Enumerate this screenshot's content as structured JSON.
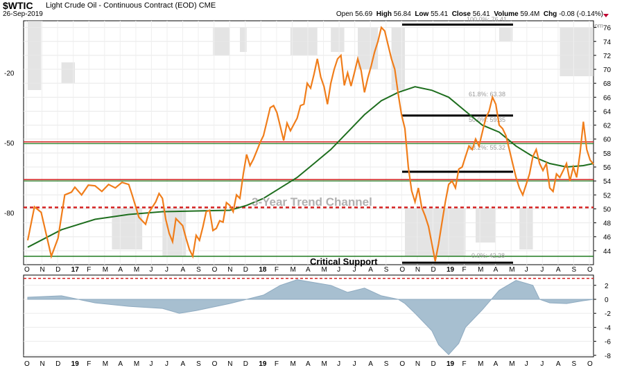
{
  "header": {
    "symbol": "$WTIC",
    "description": "Light Crude Oil - Continuous Contract (EOD)",
    "exchange": "CME",
    "date": "26-Sep-2019",
    "open_label": "Open",
    "open": "56.69",
    "high_label": "High",
    "high": "56.84",
    "low_label": "Low",
    "low": "55.41",
    "close_label": "Close",
    "close": "56.41",
    "volume_label": "Volume",
    "volume": "59.4M",
    "chg_label": "Chg",
    "chg": "-0.08 (-0.14%)",
    "watermark": "@ StockCharts.com"
  },
  "colors": {
    "price": "#f07d1a",
    "ma": "#1e6e1e",
    "resistance": "#d42020",
    "support": "#1e7a1e",
    "trend_dashed": "#d42020",
    "indicator_fill": "#a7bfd0",
    "indicator_stroke": "#8eaac0",
    "ind_gray": "#d8d8d8"
  },
  "chart_data": [
    {
      "type": "line",
      "right_axis": [
        44,
        46,
        48,
        50,
        52,
        54,
        56,
        58,
        60,
        62,
        64,
        66,
        68,
        70,
        72,
        74,
        76
      ],
      "ylim": [
        42,
        77
      ],
      "left_axis_ticks": [
        "-20",
        "-50",
        "-80"
      ],
      "x_ticks": [
        "O",
        "N",
        "D",
        "17",
        "F",
        "M",
        "A",
        "M",
        "J",
        "J",
        "A",
        "S",
        "O",
        "N",
        "D",
        "18",
        "F",
        "M",
        "A",
        "M",
        "J",
        "J",
        "A",
        "S",
        "O",
        "N",
        "D",
        "19",
        "F",
        "M",
        "A",
        "M",
        "J",
        "J",
        "A",
        "S",
        "O"
      ],
      "series": [
        {
          "values": [
            [
              0,
              45.5
            ],
            [
              2,
              50.3
            ],
            [
              4,
              49.5
            ],
            [
              7,
              43.2
            ],
            [
              9,
              45.8
            ],
            [
              11,
              52.0
            ],
            [
              13,
              52.4
            ],
            [
              14,
              53.1
            ],
            [
              16,
              52.0
            ],
            [
              18,
              53.4
            ],
            [
              20,
              53.3
            ],
            [
              22,
              52.5
            ],
            [
              24,
              53.5
            ],
            [
              26,
              53.0
            ],
            [
              28,
              53.8
            ],
            [
              30,
              53.5
            ],
            [
              31,
              52.0
            ],
            [
              33,
              48.8
            ],
            [
              35,
              47.8
            ],
            [
              36,
              49.5
            ],
            [
              38,
              51.0
            ],
            [
              39,
              52.2
            ],
            [
              40,
              51.5
            ],
            [
              41,
              48.5
            ],
            [
              42,
              46.5
            ],
            [
              43,
              45.3
            ],
            [
              44,
              48.6
            ],
            [
              46,
              47.6
            ],
            [
              47,
              45.8
            ],
            [
              48,
              44.2
            ],
            [
              49,
              43.2
            ],
            [
              50,
              46.2
            ],
            [
              51,
              45.5
            ],
            [
              52,
              47.4
            ],
            [
              53,
              49.6
            ],
            [
              54,
              49.8
            ],
            [
              55,
              46.9
            ],
            [
              56,
              47.2
            ],
            [
              57,
              48.3
            ],
            [
              58,
              48.1
            ],
            [
              59,
              50.9
            ],
            [
              60,
              50.5
            ],
            [
              61,
              49.6
            ],
            [
              62,
              52.0
            ],
            [
              63,
              51.5
            ],
            [
              64,
              55.0
            ],
            [
              65,
              57.8
            ],
            [
              66,
              56.2
            ],
            [
              67,
              57.1
            ],
            [
              68,
              58.3
            ],
            [
              69,
              59.5
            ],
            [
              70,
              60.5
            ],
            [
              71,
              62.5
            ],
            [
              72,
              64.5
            ],
            [
              73,
              64.8
            ],
            [
              74,
              63.8
            ],
            [
              75,
              61.8
            ],
            [
              76,
              59.8
            ],
            [
              77,
              62.3
            ],
            [
              78,
              61.2
            ],
            [
              79,
              62.1
            ],
            [
              80,
              63.0
            ],
            [
              81,
              64.8
            ],
            [
              82,
              65.0
            ],
            [
              83,
              68.0
            ],
            [
              84,
              67.3
            ],
            [
              85,
              69.3
            ],
            [
              86,
              71.5
            ],
            [
              87,
              68.9
            ],
            [
              88,
              67.5
            ],
            [
              89,
              65.0
            ],
            [
              90,
              68.0
            ],
            [
              91,
              70.0
            ],
            [
              92,
              71.5
            ],
            [
              93,
              72.0
            ],
            [
              94,
              67.7
            ],
            [
              95,
              69.5
            ],
            [
              96,
              67.6
            ],
            [
              97,
              69.5
            ],
            [
              98,
              71.5
            ],
            [
              99,
              69.8
            ],
            [
              100,
              66.7
            ],
            [
              101,
              68.8
            ],
            [
              102,
              70.5
            ],
            [
              103,
              72.5
            ],
            [
              104,
              74.0
            ],
            [
              105,
              76.0
            ],
            [
              106,
              75.5
            ],
            [
              107,
              73.5
            ],
            [
              108,
              71.5
            ],
            [
              109,
              70.0
            ],
            [
              110,
              66.5
            ],
            [
              111,
              63.5
            ],
            [
              112,
              61.5
            ],
            [
              113,
              56.0
            ],
            [
              114,
              52.6
            ],
            [
              115,
              51.0
            ],
            [
              116,
              53.0
            ],
            [
              117,
              50.2
            ],
            [
              118,
              49.0
            ],
            [
              119,
              47.5
            ],
            [
              120,
              45.0
            ],
            [
              121,
              42.5
            ],
            [
              122,
              45.0
            ],
            [
              123,
              48.0
            ],
            [
              124,
              51.0
            ],
            [
              125,
              53.5
            ],
            [
              126,
              54.0
            ],
            [
              127,
              53.0
            ],
            [
              128,
              55.7
            ],
            [
              129,
              56.0
            ],
            [
              130,
              57.5
            ],
            [
              131,
              59.0
            ],
            [
              132,
              58.5
            ],
            [
              133,
              60.0
            ],
            [
              134,
              59.0
            ],
            [
              135,
              61.0
            ],
            [
              136,
              63.0
            ],
            [
              137,
              64.0
            ],
            [
              138,
              66.0
            ],
            [
              139,
              65.0
            ],
            [
              140,
              62.0
            ],
            [
              141,
              61.5
            ],
            [
              142,
              60.5
            ],
            [
              143,
              58.5
            ],
            [
              144,
              56.5
            ],
            [
              145,
              54.5
            ],
            [
              146,
              53.0
            ],
            [
              147,
              52.0
            ],
            [
              148,
              53.5
            ],
            [
              149,
              55.0
            ],
            [
              150,
              57.5
            ],
            [
              151,
              58.5
            ],
            [
              152,
              56.5
            ],
            [
              153,
              55.5
            ],
            [
              154,
              56.5
            ],
            [
              155,
              53.0
            ],
            [
              156,
              52.5
            ],
            [
              157,
              55.0
            ],
            [
              158,
              54.5
            ],
            [
              159,
              55.5
            ],
            [
              160,
              56.5
            ],
            [
              161,
              54.0
            ],
            [
              162,
              56.0
            ],
            [
              163,
              54.5
            ],
            [
              164,
              58.0
            ],
            [
              165,
              62.5
            ],
            [
              166,
              58.5
            ],
            [
              167,
              57.0
            ],
            [
              168,
              56.4
            ]
          ]
        },
        {
          "values": [
            [
              0,
              44.5
            ],
            [
              10,
              47.0
            ],
            [
              20,
              48.5
            ],
            [
              30,
              49.2
            ],
            [
              40,
              49.6
            ],
            [
              50,
              49.7
            ],
            [
              60,
              49.8
            ],
            [
              65,
              50.5
            ],
            [
              70,
              51.5
            ],
            [
              75,
              53.0
            ],
            [
              80,
              54.5
            ],
            [
              85,
              56.5
            ],
            [
              90,
              58.5
            ],
            [
              95,
              61.0
            ],
            [
              100,
              63.5
            ],
            [
              105,
              65.5
            ],
            [
              110,
              66.7
            ],
            [
              115,
              67.5
            ],
            [
              120,
              67.0
            ],
            [
              125,
              66.0
            ],
            [
              130,
              64.0
            ],
            [
              135,
              62.0
            ],
            [
              140,
              61.0
            ],
            [
              145,
              59.0
            ],
            [
              150,
              57.5
            ],
            [
              155,
              56.5
            ],
            [
              160,
              56.0
            ],
            [
              165,
              56.2
            ],
            [
              168,
              56.5
            ]
          ]
        }
      ]
    },
    {
      "type": "area",
      "ylim": [
        -8.3,
        3.5
      ],
      "right_axis": [
        2,
        0,
        -2,
        -4,
        -6,
        -8
      ],
      "x_ticks": [
        "O",
        "N",
        "D",
        "19",
        "F",
        "M",
        "A",
        "M",
        "J",
        "J",
        "A",
        "S",
        "O",
        "N",
        "D",
        "19",
        "F",
        "M",
        "A",
        "M",
        "J",
        "J",
        "A",
        "S",
        "O",
        "N",
        "D",
        "19",
        "F",
        "M",
        "A",
        "M",
        "J",
        "J",
        "A",
        "S",
        "O"
      ],
      "x": [
        0,
        10,
        20,
        30,
        40,
        45,
        50,
        60,
        70,
        75,
        80,
        90,
        95,
        100,
        105,
        110,
        112,
        115,
        120,
        122,
        125,
        128,
        130,
        135,
        140,
        145,
        150,
        152,
        155,
        160,
        165,
        168
      ],
      "values": [
        0.3,
        0.5,
        -0.5,
        -1.0,
        -1.3,
        -2.0,
        -1.6,
        -0.6,
        0.6,
        2.0,
        2.8,
        2.0,
        1.0,
        1.6,
        0.5,
        0.0,
        -0.6,
        -2.0,
        -4.5,
        -6.5,
        -7.9,
        -6.3,
        -4.0,
        -1.5,
        1.3,
        2.7,
        2.0,
        0.0,
        -0.5,
        -0.6,
        -0.2,
        0.0
      ]
    }
  ],
  "annotations": {
    "fib_100": "100.0%: 76.41",
    "fib_618": "61.8%: 63.38",
    "fib_50": "50.0%: 59.35",
    "fib_382": "38.2%: 55.32",
    "fib_0": "0.0%: 42.28",
    "trend_channel": "3-Year Trend Channel",
    "critical_support": "Critical Support"
  }
}
